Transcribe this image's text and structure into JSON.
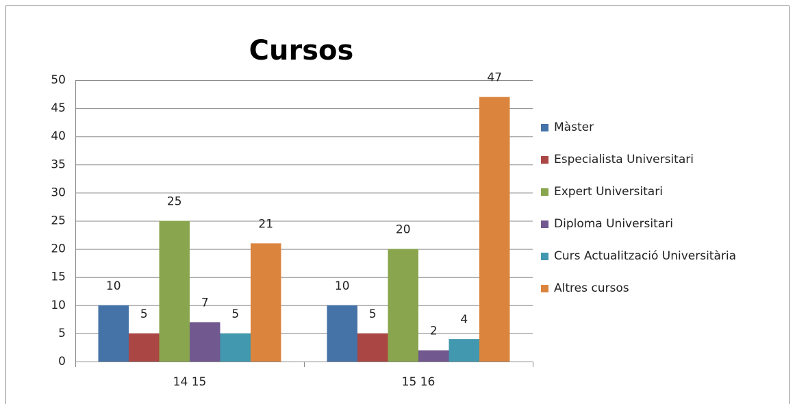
{
  "chart_data": {
    "type": "bar",
    "title": "Cursos",
    "categories": [
      "14 15",
      "15 16"
    ],
    "series": [
      {
        "name": "Màster",
        "color": "#4572a7",
        "values": [
          10,
          10
        ]
      },
      {
        "name": "Especialista Universitari",
        "color": "#aa4643",
        "values": [
          5,
          5
        ]
      },
      {
        "name": "Expert Universitari",
        "color": "#89a54e",
        "values": [
          25,
          20
        ]
      },
      {
        "name": "Diploma Universitari",
        "color": "#71588f",
        "values": [
          7,
          2
        ]
      },
      {
        "name": "Curs Actualització Universitària",
        "color": "#4198af",
        "values": [
          5,
          4
        ]
      },
      {
        "name": "Altres cursos",
        "color": "#db843d",
        "values": [
          21,
          47
        ]
      }
    ],
    "ylim": [
      0,
      50
    ],
    "yticks": [
      0,
      5,
      10,
      15,
      20,
      25,
      30,
      35,
      40,
      45,
      50
    ],
    "grid": true,
    "legend": "right"
  }
}
